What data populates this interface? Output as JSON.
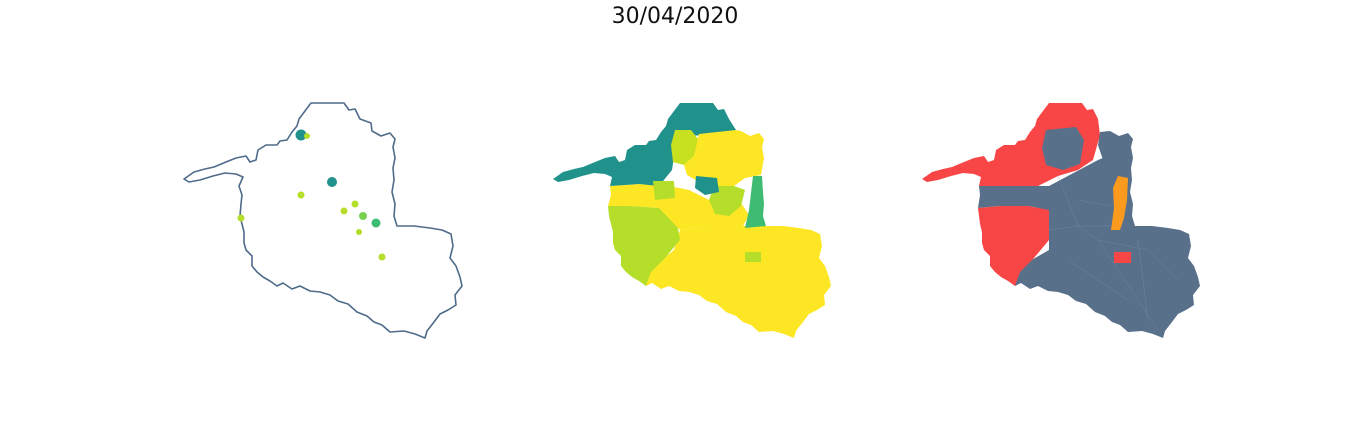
{
  "figure": {
    "title": "30/04/2020"
  },
  "colors": {
    "outline": "#4f6b8a",
    "teal": "#21918c",
    "green": "#3fbc73",
    "lime": "#b5de2b",
    "yellow": "#fde725",
    "slate": "#59708b",
    "red": "#f84646",
    "orange": "#fb9a1c"
  },
  "panels": [
    {
      "name": "bubble-map",
      "description_free": true
    },
    {
      "name": "choropleth-viridis"
    },
    {
      "name": "choropleth-categorical"
    }
  ]
}
